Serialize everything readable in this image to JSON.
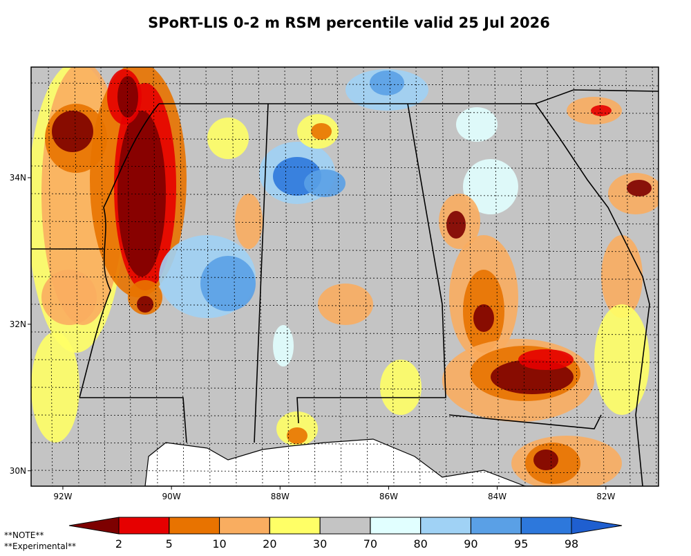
{
  "title": "SPoRT-LIS 0-2 m RSM percentile valid 25 Jul 2026",
  "map": {
    "xlim": [
      -92.585,
      -81.03
    ],
    "ylim": [
      29.79,
      35.51
    ],
    "xticks": [
      {
        "value": -92,
        "label": "92W"
      },
      {
        "value": -90,
        "label": "90W"
      },
      {
        "value": -88,
        "label": "88W"
      },
      {
        "value": -86,
        "label": "86W"
      },
      {
        "value": -84,
        "label": "84W"
      },
      {
        "value": -82,
        "label": "82W"
      }
    ],
    "yticks": [
      {
        "value": 34,
        "label": "34N"
      },
      {
        "value": 32,
        "label": "32N"
      },
      {
        "value": 30,
        "label": "30N"
      }
    ]
  },
  "colorbar": {
    "ticks": [
      2,
      5,
      10,
      20,
      30,
      70,
      80,
      90,
      95,
      98
    ],
    "colors": [
      "#7d0000",
      "#e60000",
      "#e87300",
      "#f9ad60",
      "#ffff66",
      "#c4c4c4",
      "#e1ffff",
      "#a0d2f5",
      "#5aa0e6",
      "#2d78dc",
      "#1f5fd0"
    ]
  },
  "notes": [
    "**NOTE**",
    "**Experimental**"
  ]
}
